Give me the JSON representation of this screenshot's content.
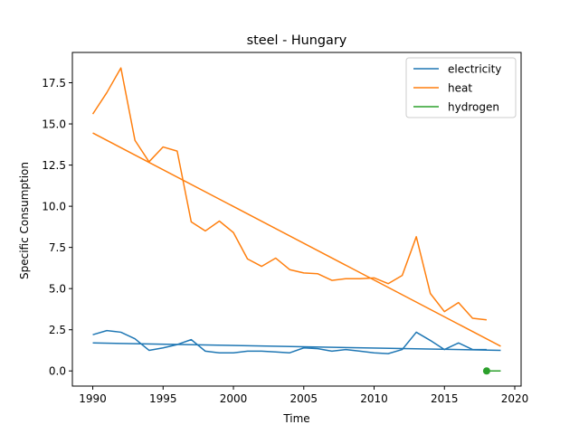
{
  "chart_data": {
    "type": "line",
    "title": "steel - Hungary",
    "xlabel": "Time",
    "ylabel": "Specific Consumption",
    "xlim": [
      1988.55,
      2020.45
    ],
    "ylim": [
      -0.92,
      19.34
    ],
    "x_ticks": [
      1990,
      1995,
      2000,
      2005,
      2010,
      2015,
      2020
    ],
    "x_tick_labels": [
      "1990",
      "1995",
      "2000",
      "2005",
      "2010",
      "2015",
      "2020"
    ],
    "y_ticks": [
      0.0,
      2.5,
      5.0,
      7.5,
      10.0,
      12.5,
      15.0,
      17.5
    ],
    "y_tick_labels": [
      "0.0",
      "2.5",
      "5.0",
      "7.5",
      "10.0",
      "12.5",
      "15.0",
      "17.5"
    ],
    "grid": false,
    "legend_position": "top-right",
    "series": [
      {
        "name": "electricity",
        "color": "#1f77b4",
        "x": [
          1990,
          1991,
          1992,
          1993,
          1994,
          1995,
          1996,
          1997,
          1998,
          1999,
          2000,
          2001,
          2002,
          2003,
          2004,
          2005,
          2006,
          2007,
          2008,
          2009,
          2010,
          2011,
          2012,
          2013,
          2014,
          2015,
          2016,
          2017,
          2018
        ],
        "y": [
          2.2,
          2.45,
          2.35,
          1.95,
          1.25,
          1.4,
          1.6,
          1.9,
          1.2,
          1.1,
          1.1,
          1.2,
          1.2,
          1.15,
          1.1,
          1.4,
          1.35,
          1.2,
          1.3,
          1.2,
          1.1,
          1.05,
          1.3,
          2.35,
          1.85,
          1.3,
          1.7,
          1.3,
          1.3
        ],
        "trend": {
          "x": [
            1990,
            2019
          ],
          "y": [
            1.7,
            1.25
          ]
        }
      },
      {
        "name": "heat",
        "color": "#ff7f0e",
        "x": [
          1990,
          1991,
          1992,
          1993,
          1994,
          1995,
          1996,
          1997,
          1998,
          1999,
          2000,
          2001,
          2002,
          2003,
          2004,
          2005,
          2006,
          2007,
          2008,
          2009,
          2010,
          2011,
          2012,
          2013,
          2014,
          2015,
          2016,
          2017,
          2018
        ],
        "y": [
          15.6,
          16.9,
          18.4,
          14.0,
          12.7,
          13.6,
          13.35,
          9.05,
          8.5,
          9.1,
          8.4,
          6.8,
          6.35,
          6.85,
          6.15,
          5.95,
          5.9,
          5.5,
          5.6,
          5.6,
          5.65,
          5.3,
          5.8,
          8.15,
          4.7,
          3.6,
          4.15,
          3.2,
          3.1
        ],
        "trend": {
          "x": [
            1990,
            2019
          ],
          "y": [
            14.45,
            1.5
          ]
        }
      },
      {
        "name": "hydrogen",
        "color": "#2ca02c",
        "x": [
          2018,
          2019
        ],
        "y": [
          0.0,
          0.0
        ],
        "marker_x": 2018,
        "marker_y": 0.0
      }
    ]
  }
}
